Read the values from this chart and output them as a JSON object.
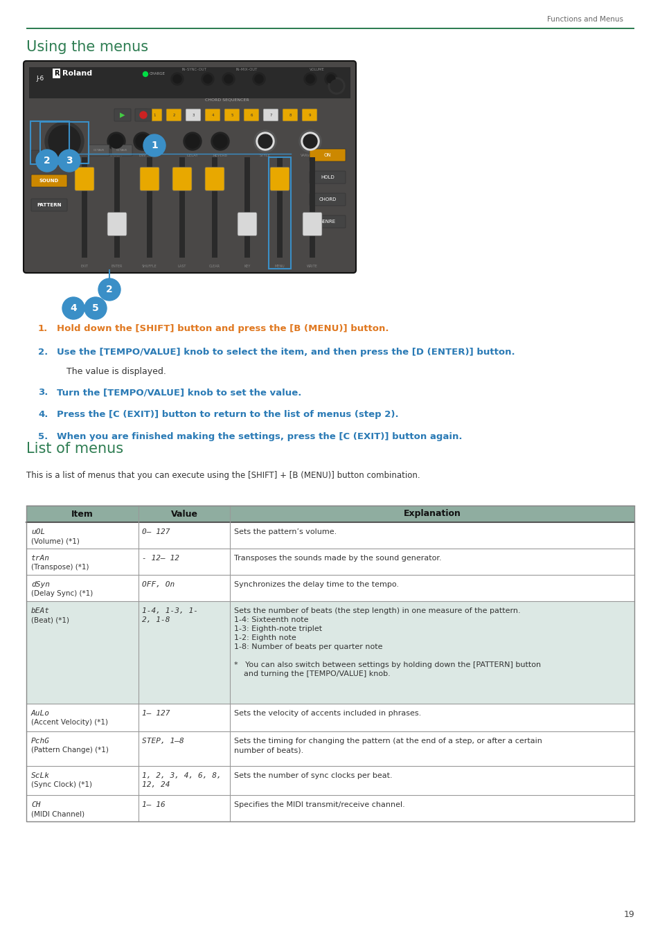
{
  "page_header_text": "Functions and Menus",
  "header_line_color": "#2e7d52",
  "section1_title": "Using the menus",
  "section2_title": "List of menus",
  "section1_title_color": "#2e7d52",
  "section2_title_color": "#2e7d52",
  "intro_text": "This is a list of menus that you can execute using the [SHIFT] + [B (MENU)] button combination.",
  "step1_num": "1.",
  "step1_text": "Hold down the [SHIFT] button and press the [B (MENU)] button.",
  "step1_color": "#e07820",
  "step2_num": "2.",
  "step2_text": "Use the [TEMPO/VALUE] knob to select the item, and then press the [D (ENTER)] button.",
  "step2_color": "#2a7ab5",
  "step2b_text": "The value is displayed.",
  "step2b_color": "#333333",
  "step3_num": "3.",
  "step3_text": "Turn the [TEMPO/VALUE] knob to set the value.",
  "step3_color": "#2a7ab5",
  "step4_num": "4.",
  "step4_text": "Press the [C (EXIT)] button to return to the list of menus (step 2).",
  "step4_color": "#2a7ab5",
  "step5_num": "5.",
  "step5_text": "When you are finished making the settings, press the [C (EXIT)] button again.",
  "step5_color": "#2a7ab5",
  "table_header_bg": "#8fada0",
  "table_alt_bg": "#dce8e4",
  "table_normal_bg": "#ffffff",
  "table_border_color": "#999999",
  "table_cols": [
    "Item",
    "Value",
    "Explanation"
  ],
  "page_number": "19",
  "bg_color": "#ffffff",
  "text_color": "#333333",
  "device_bg": "#3a3a3a",
  "device_body": "#4a4847",
  "device_border": "#222222",
  "circle_color": "#3a8fc7",
  "yellow_btn": "#e8a800",
  "white_btn": "#d8d8d8",
  "figsize": [
    9.54,
    13.5
  ],
  "dpi": 100
}
